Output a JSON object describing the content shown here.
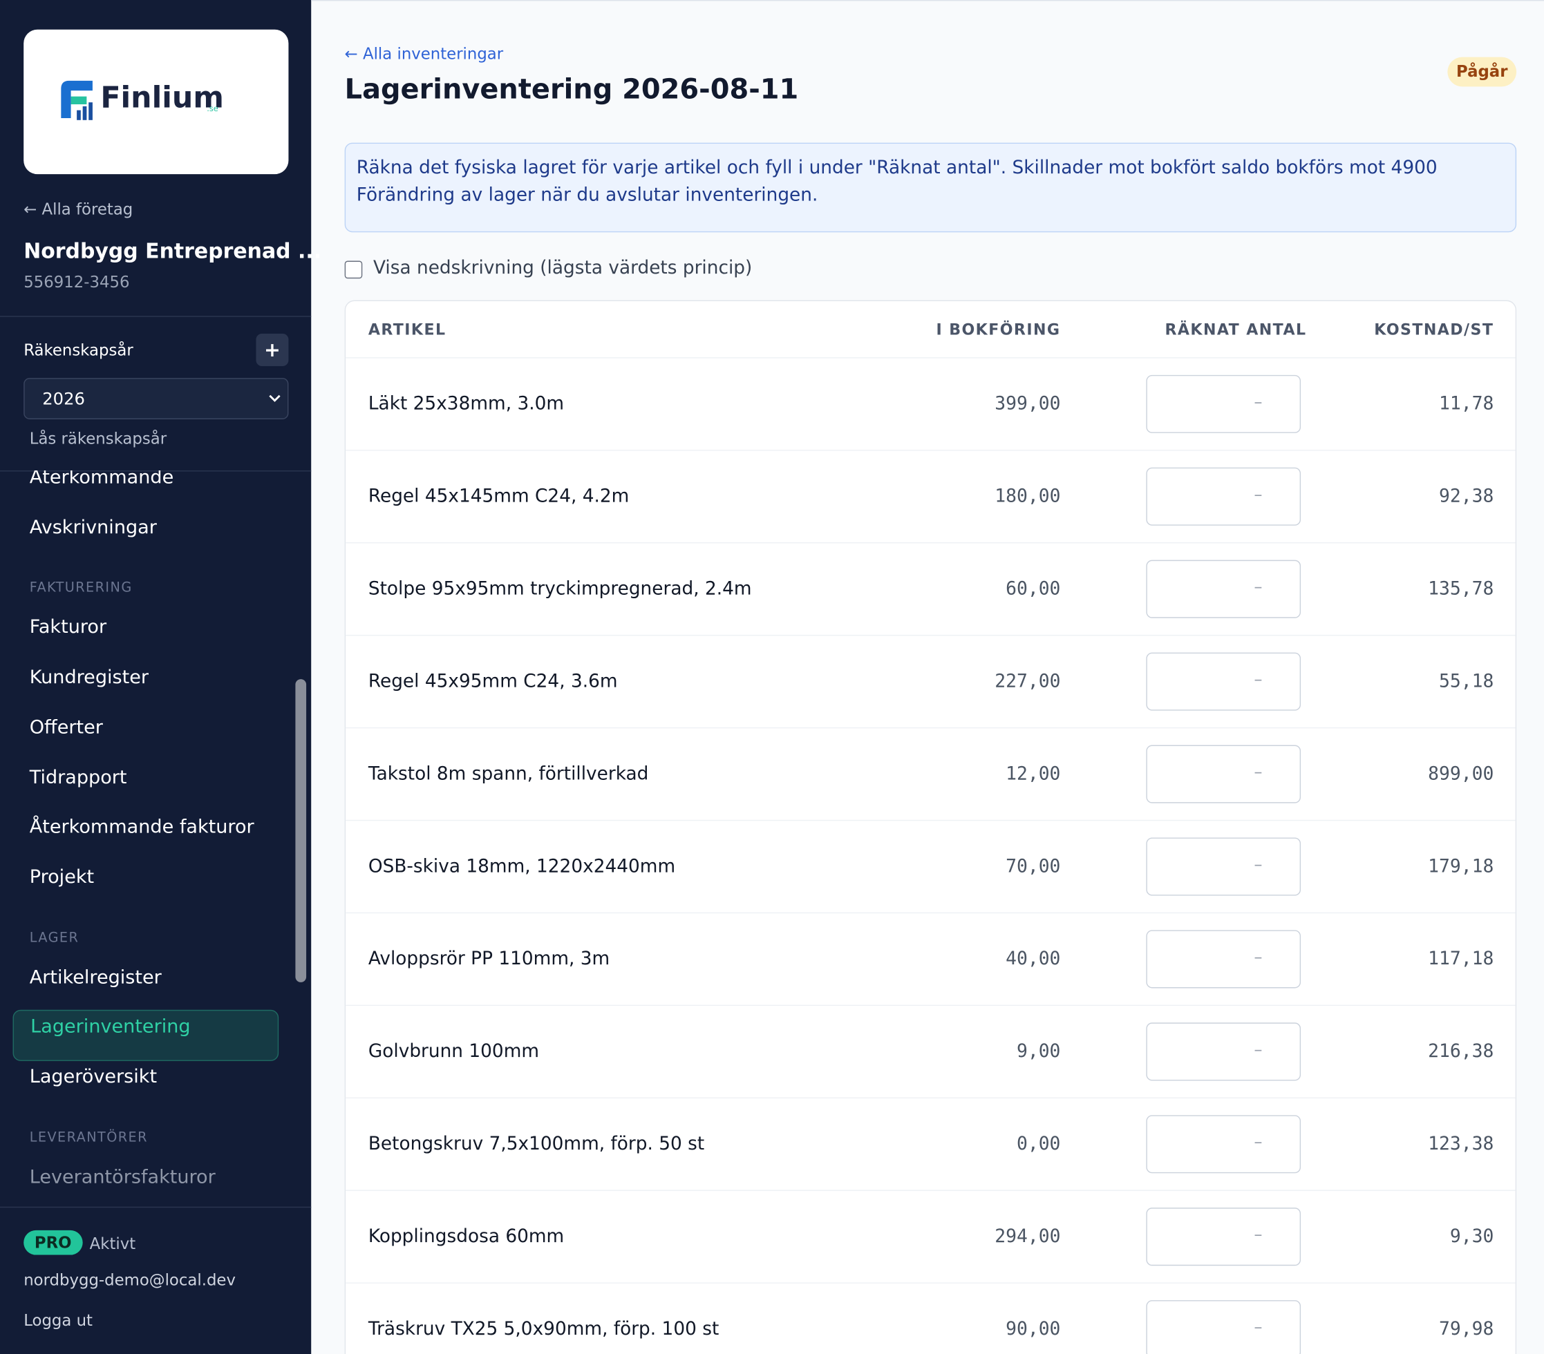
{
  "sidebar": {
    "logo": {
      "brand": "Finlium",
      "suffix": ".se"
    },
    "back_link": "← Alla företag",
    "company_name": "Nordbygg Entreprenad ...",
    "org_number": "556912-3456",
    "fiscal_year_label": "Räkenskapsår",
    "add_button": "+",
    "fiscal_year_value": "2026",
    "lock_year": "Lås räkenskapsår",
    "nav": [
      {
        "item": "Återkommande"
      },
      {
        "item": "Avskrivningar"
      },
      {
        "section": "FAKTURERING"
      },
      {
        "item": "Fakturor"
      },
      {
        "item": "Kundregister"
      },
      {
        "item": "Offerter"
      },
      {
        "item": "Tidrapport"
      },
      {
        "item": "Återkommande fakturor"
      },
      {
        "item": "Projekt"
      },
      {
        "section": "LAGER"
      },
      {
        "item": "Artikelregister"
      },
      {
        "item": "Lagerinventering",
        "active": true
      },
      {
        "item": "Lageröversikt"
      },
      {
        "section": "LEVERANTÖRER"
      },
      {
        "item": "Leverantörsfakturor"
      }
    ],
    "plan_badge": "PRO",
    "plan_status": "Aktivt",
    "email": "nordbygg-demo@local.dev",
    "logout": "Logga ut"
  },
  "header": {
    "back_link": "← Alla inventeringar",
    "title": "Lagerinventering 2026-08-11",
    "status": "Pågår"
  },
  "notice": "Räkna det fysiska lagret för varje artikel och fyll i under \"Räknat antal\". Skillnader mot bokfört saldo bokförs mot 4900 Förändring av lager när du avslutar inventeringen.",
  "checkbox_label": "Visa nedskrivning (lägsta värdets princip)",
  "table": {
    "columns": [
      "ARTIKEL",
      "I BOKFÖRING",
      "RÄKNAT ANTAL",
      "KOSTNAD/ST"
    ],
    "placeholder": "–",
    "rows": [
      [
        "Läkt 25x38mm, 3.0m",
        "399,00",
        "11,78"
      ],
      [
        "Regel 45x145mm C24, 4.2m",
        "180,00",
        "92,38"
      ],
      [
        "Stolpe 95x95mm tryckimpregnerad, 2.4m",
        "60,00",
        "135,78"
      ],
      [
        "Regel 45x95mm C24, 3.6m",
        "227,00",
        "55,18"
      ],
      [
        "Takstol 8m spann, förtillverkad",
        "12,00",
        "899,00"
      ],
      [
        "OSB-skiva 18mm, 1220x2440mm",
        "70,00",
        "179,18"
      ],
      [
        "Avloppsrör PP 110mm, 3m",
        "40,00",
        "117,18"
      ],
      [
        "Golvbrunn 100mm",
        "9,00",
        "216,38"
      ],
      [
        "Betongskruv 7,5x100mm, förp. 50 st",
        "0,00",
        "123,38"
      ],
      [
        "Kopplingsdosa 60mm",
        "294,00",
        "9,30"
      ],
      [
        "Träskruv TX25 5,0x90mm, förp. 100 st",
        "90,00",
        "79,98"
      ]
    ]
  }
}
